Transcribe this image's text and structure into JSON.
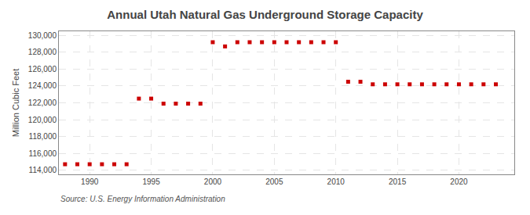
{
  "chart_data": {
    "type": "scatter",
    "title": "Annual Utah Natural Gas Underground Storage Capacity",
    "ylabel": "Million Cubic Feet",
    "source": "Source: U.S. Energy Information Administration",
    "x": [
      1988,
      1989,
      1990,
      1991,
      1992,
      1993,
      1994,
      1995,
      1996,
      1997,
      1998,
      1999,
      2000,
      2001,
      2002,
      2003,
      2004,
      2005,
      2006,
      2007,
      2008,
      2009,
      2010,
      2011,
      2012,
      2013,
      2014,
      2015,
      2016,
      2017,
      2018,
      2019,
      2020,
      2021,
      2022,
      2023
    ],
    "values": [
      114700,
      114700,
      114700,
      114700,
      114700,
      114700,
      122500,
      122500,
      121900,
      121900,
      121900,
      121900,
      129200,
      128700,
      129200,
      129200,
      129200,
      129200,
      129200,
      129200,
      129200,
      129200,
      129200,
      124500,
      124500,
      124200,
      124200,
      124200,
      124200,
      124200,
      124200,
      124200,
      124200,
      124200,
      124200,
      124200
    ],
    "color": "#cc0000",
    "marker": "square",
    "xlim": [
      1987.5,
      2024.5
    ],
    "xticks": [
      1990,
      1995,
      2000,
      2005,
      2010,
      2015,
      2020
    ],
    "ylim": [
      113500,
      130500
    ],
    "yticks": [
      {
        "value": 114000,
        "label": "114,000"
      },
      {
        "value": 116000,
        "label": "116,000"
      },
      {
        "value": 118000,
        "label": "118,000"
      },
      {
        "value": 120000,
        "label": "120,000"
      },
      {
        "value": 122000,
        "label": "122,000"
      },
      {
        "value": 124000,
        "label": "124,000"
      },
      {
        "value": 126000,
        "label": "126,000"
      },
      {
        "value": 128000,
        "label": "128,000"
      },
      {
        "value": 130000,
        "label": "130,000"
      }
    ],
    "grid": true
  }
}
